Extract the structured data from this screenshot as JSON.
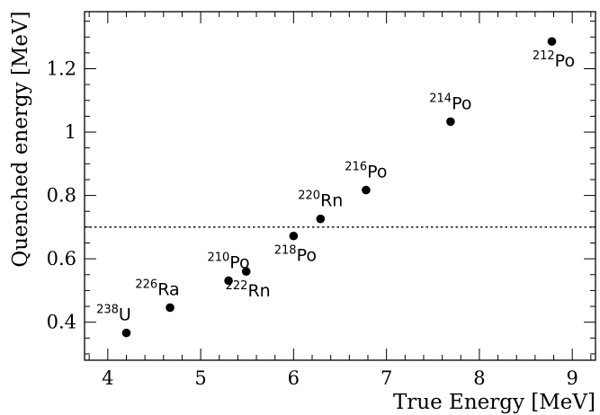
{
  "chart_data": {
    "type": "scatter",
    "xlabel": "True Energy [MeV]",
    "ylabel": "Quenched energy [MeV]",
    "xlim": [
      3.75,
      9.25
    ],
    "ylim": [
      0.28,
      1.38
    ],
    "xticks": [
      4,
      5,
      6,
      7,
      8,
      9
    ],
    "yticks": [
      0.4,
      0.6,
      0.8,
      1.0,
      1.2
    ],
    "ytick_labels": [
      "0.4",
      "0.6",
      "0.8",
      "1",
      "1.2"
    ],
    "grid": false,
    "threshold_line": {
      "y": 0.7,
      "style": "dotted"
    },
    "points": [
      {
        "mass": "238",
        "element": "U",
        "x": 4.2,
        "y": 0.366,
        "label_pos": "above-left"
      },
      {
        "mass": "226",
        "element": "Ra",
        "x": 4.67,
        "y": 0.446,
        "label_pos": "above-left"
      },
      {
        "mass": "210",
        "element": "Po",
        "x": 5.3,
        "y": 0.531,
        "label_pos": "above"
      },
      {
        "mass": "222",
        "element": "Rn",
        "x": 5.49,
        "y": 0.56,
        "label_pos": "below"
      },
      {
        "mass": "218",
        "element": "Po",
        "x": 6.0,
        "y": 0.672,
        "label_pos": "below"
      },
      {
        "mass": "220",
        "element": "Rn",
        "x": 6.29,
        "y": 0.726,
        "label_pos": "above"
      },
      {
        "mass": "216",
        "element": "Po",
        "x": 6.78,
        "y": 0.817,
        "label_pos": "above"
      },
      {
        "mass": "214",
        "element": "Po",
        "x": 7.69,
        "y": 1.033,
        "label_pos": "above"
      },
      {
        "mass": "212",
        "element": "Po",
        "x": 8.78,
        "y": 1.286,
        "label_pos": "below"
      }
    ],
    "marker_color": "#000000"
  }
}
